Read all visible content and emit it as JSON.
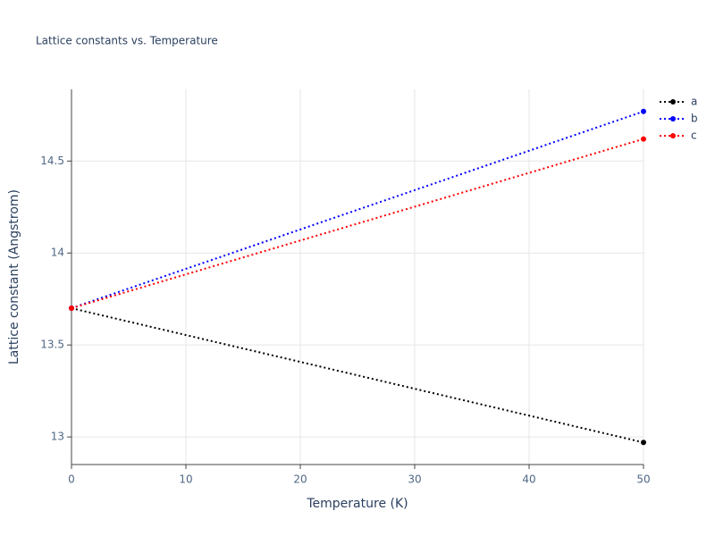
{
  "chart_data": {
    "type": "line",
    "title": "Lattice constants vs. Temperature",
    "x_label": "Temperature (K)",
    "y_label": "Lattice constant (Angstrom)",
    "x": [
      0,
      50
    ],
    "series": [
      {
        "name": "a",
        "color": "#000000",
        "values": [
          13.7,
          12.97
        ]
      },
      {
        "name": "b",
        "color": "#0000ff",
        "values": [
          13.7,
          14.77
        ]
      },
      {
        "name": "c",
        "color": "#ff0000",
        "values": [
          13.7,
          14.62
        ]
      }
    ],
    "xlim": [
      0,
      50
    ],
    "xticks": [
      0,
      10,
      20,
      30,
      40,
      50
    ],
    "ylim": [
      12.85,
      14.89
    ],
    "yticks": [
      13,
      13.5,
      14,
      14.5
    ],
    "grid": true,
    "legend": "right"
  }
}
